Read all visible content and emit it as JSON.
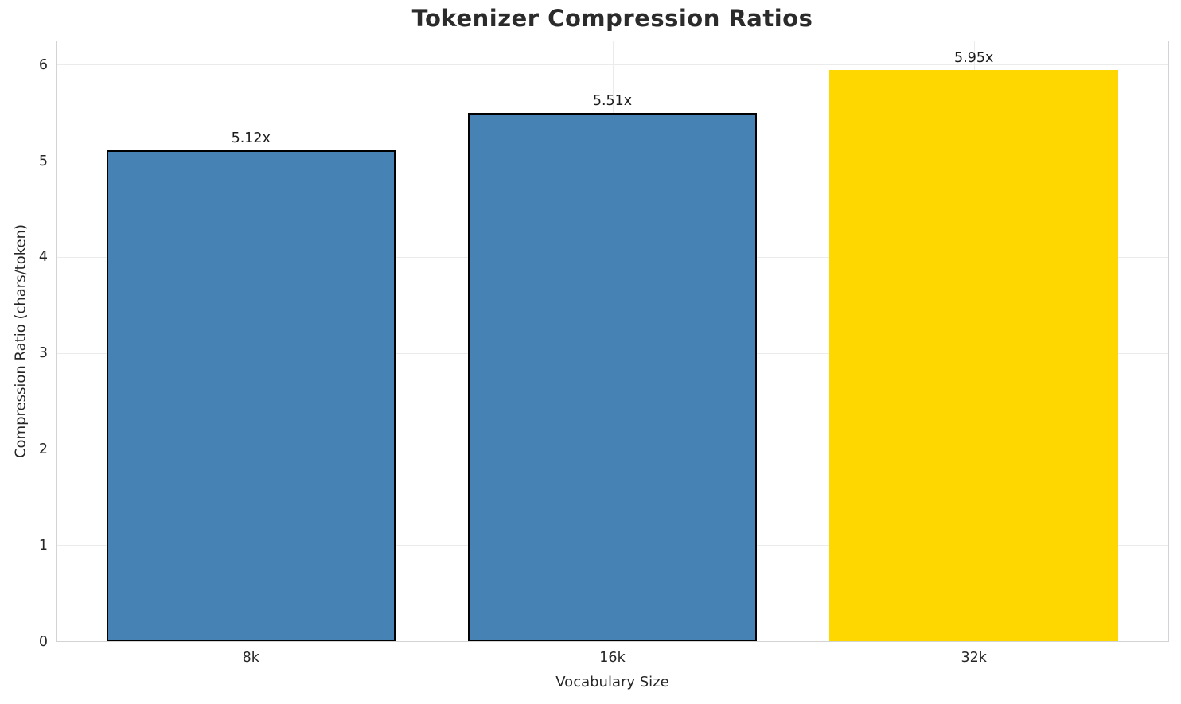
{
  "chart_data": {
    "type": "bar",
    "title": "Tokenizer Compression Ratios",
    "xlabel": "Vocabulary Size",
    "ylabel": "Compression Ratio (chars/token)",
    "categories": [
      "8k",
      "16k",
      "32k"
    ],
    "values": [
      5.12,
      5.51,
      5.95
    ],
    "bar_labels": [
      "5.12x",
      "5.51x",
      "5.95x"
    ],
    "bar_colors": [
      "#4682B4",
      "#4682B4",
      "#FFD700"
    ],
    "bar_edge_colors": [
      "#000000",
      "#000000",
      "#FFD700"
    ],
    "bar_width_fraction": 0.8,
    "xlim": [
      -0.54,
      2.54
    ],
    "ylim": [
      0,
      6.26
    ],
    "yticks": [
      0,
      1,
      2,
      3,
      4,
      5,
      6
    ],
    "grid": "both",
    "legend": "none",
    "colors": {
      "grid": "#EBEBEB",
      "spine": "#D3D3D3",
      "text": "#262626",
      "background": "#FFFFFF"
    }
  }
}
